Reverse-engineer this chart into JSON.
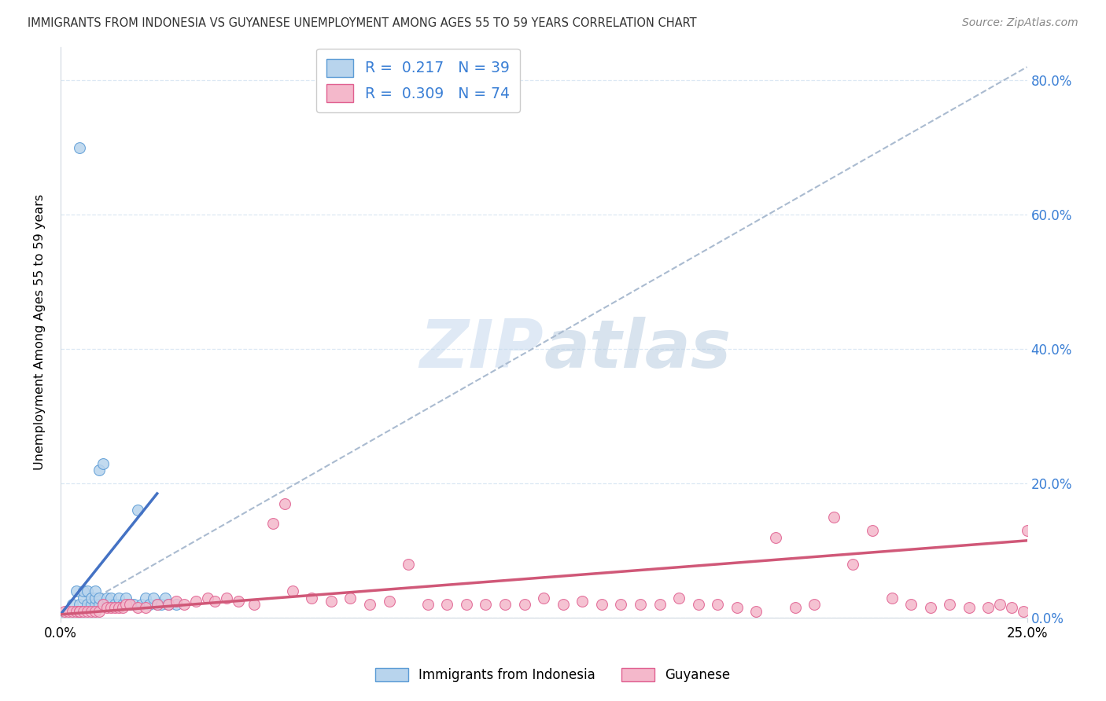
{
  "title": "IMMIGRANTS FROM INDONESIA VS GUYANESE UNEMPLOYMENT AMONG AGES 55 TO 59 YEARS CORRELATION CHART",
  "source": "Source: ZipAtlas.com",
  "ylabel": "Unemployment Among Ages 55 to 59 years",
  "y_ticks_pct": [
    "0.0%",
    "20.0%",
    "40.0%",
    "60.0%",
    "80.0%"
  ],
  "y_tick_vals": [
    0.0,
    0.2,
    0.4,
    0.6,
    0.8
  ],
  "x_lim": [
    0.0,
    0.25
  ],
  "y_lim": [
    0.0,
    0.85
  ],
  "x_tick_labels": [
    "0.0%",
    "25.0%"
  ],
  "x_tick_vals": [
    0.0,
    0.25
  ],
  "watermark": "ZIPatlas",
  "legend1_label": "R =  0.217   N = 39",
  "legend2_label": "R =  0.309   N = 74",
  "legend_series1": "Immigrants from Indonesia",
  "legend_series2": "Guyanese",
  "color_blue_fill": "#b8d4ed",
  "color_blue_edge": "#5b9bd5",
  "color_pink_fill": "#f4b8cb",
  "color_pink_edge": "#e06090",
  "line_color_blue": "#4472c4",
  "line_color_pink": "#d05878",
  "trendline_color": "#aabbd0",
  "grid_color": "#dce8f4",
  "spine_color": "#d0d8e0",
  "blue_x": [
    0.003,
    0.004,
    0.005,
    0.005,
    0.006,
    0.006,
    0.007,
    0.007,
    0.008,
    0.008,
    0.009,
    0.009,
    0.009,
    0.01,
    0.01,
    0.01,
    0.011,
    0.011,
    0.012,
    0.012,
    0.013,
    0.013,
    0.014,
    0.015,
    0.015,
    0.016,
    0.017,
    0.018,
    0.019,
    0.02,
    0.021,
    0.022,
    0.023,
    0.024,
    0.025,
    0.026,
    0.027,
    0.028,
    0.03
  ],
  "blue_y": [
    0.02,
    0.04,
    0.7,
    0.02,
    0.03,
    0.04,
    0.02,
    0.04,
    0.02,
    0.03,
    0.02,
    0.03,
    0.04,
    0.02,
    0.03,
    0.22,
    0.02,
    0.23,
    0.02,
    0.03,
    0.02,
    0.03,
    0.02,
    0.02,
    0.03,
    0.02,
    0.03,
    0.02,
    0.02,
    0.16,
    0.02,
    0.03,
    0.02,
    0.03,
    0.02,
    0.02,
    0.03,
    0.02,
    0.02
  ],
  "pink_x": [
    0.001,
    0.002,
    0.003,
    0.004,
    0.005,
    0.005,
    0.006,
    0.007,
    0.008,
    0.009,
    0.01,
    0.011,
    0.012,
    0.013,
    0.014,
    0.015,
    0.016,
    0.017,
    0.018,
    0.02,
    0.022,
    0.025,
    0.028,
    0.03,
    0.032,
    0.035,
    0.038,
    0.04,
    0.043,
    0.046,
    0.05,
    0.055,
    0.058,
    0.06,
    0.065,
    0.07,
    0.075,
    0.08,
    0.085,
    0.09,
    0.095,
    0.1,
    0.105,
    0.11,
    0.115,
    0.12,
    0.125,
    0.13,
    0.135,
    0.14,
    0.145,
    0.15,
    0.155,
    0.16,
    0.165,
    0.17,
    0.175,
    0.18,
    0.185,
    0.19,
    0.195,
    0.2,
    0.205,
    0.21,
    0.215,
    0.22,
    0.225,
    0.23,
    0.235,
    0.24,
    0.243,
    0.246,
    0.249,
    0.25
  ],
  "pink_y": [
    0.01,
    0.01,
    0.01,
    0.01,
    0.01,
    0.01,
    0.01,
    0.01,
    0.01,
    0.01,
    0.01,
    0.02,
    0.015,
    0.015,
    0.015,
    0.015,
    0.015,
    0.02,
    0.02,
    0.015,
    0.015,
    0.02,
    0.02,
    0.025,
    0.02,
    0.025,
    0.03,
    0.025,
    0.03,
    0.025,
    0.02,
    0.14,
    0.17,
    0.04,
    0.03,
    0.025,
    0.03,
    0.02,
    0.025,
    0.08,
    0.02,
    0.02,
    0.02,
    0.02,
    0.02,
    0.02,
    0.03,
    0.02,
    0.025,
    0.02,
    0.02,
    0.02,
    0.02,
    0.03,
    0.02,
    0.02,
    0.015,
    0.01,
    0.12,
    0.015,
    0.02,
    0.15,
    0.08,
    0.13,
    0.03,
    0.02,
    0.015,
    0.02,
    0.015,
    0.015,
    0.02,
    0.015,
    0.01,
    0.13
  ],
  "blue_trend_x0": 0.0,
  "blue_trend_x1": 0.025,
  "blue_trend_y0": 0.005,
  "blue_trend_y1": 0.185,
  "pink_trend_x0": 0.0,
  "pink_trend_x1": 0.25,
  "pink_trend_y0": 0.005,
  "pink_trend_y1": 0.115,
  "diag_trend_x0": 0.0,
  "diag_trend_x1": 0.25,
  "diag_trend_y0": 0.0,
  "diag_trend_y1": 0.82
}
